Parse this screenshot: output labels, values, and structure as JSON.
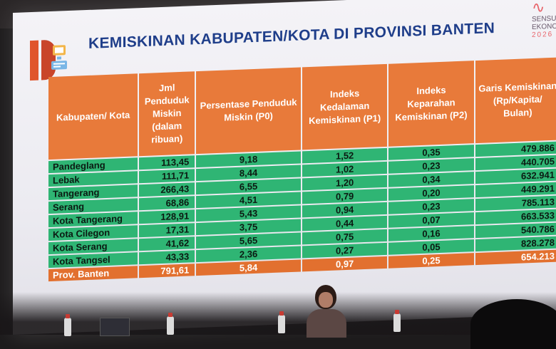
{
  "slide": {
    "title": "KEMISKINAN KABUPATEN/KOTA DI PROVINSI BANTEN",
    "brand": {
      "line1": "SENSUS",
      "line2": "EKONOMI",
      "year": "2026"
    }
  },
  "table": {
    "headers": [
      "Kabupaten/ Kota",
      "Jml Penduduk Miskin (dalam ribuan)",
      "Persentase Penduduk Miskin (P0)",
      "Indeks Kedalaman Kemiskinan (P1)",
      "Indeks Keparahan Kemiskinan (P2)",
      "Garis Kemiskinan (Rp/Kapita/ Bulan)"
    ],
    "rows": [
      [
        "Pandeglang",
        "113,45",
        "9,18",
        "1,52",
        "0,35",
        "479.886"
      ],
      [
        "Lebak",
        "111,71",
        "8,44",
        "1,02",
        "0,23",
        "440.705"
      ],
      [
        "Tangerang",
        "266,43",
        "6,55",
        "1,20",
        "0,34",
        "632.941"
      ],
      [
        "Serang",
        "68,86",
        "4,51",
        "0,79",
        "0,20",
        "449.291"
      ],
      [
        "Kota Tangerang",
        "128,91",
        "5,43",
        "0,94",
        "0,23",
        "785.113"
      ],
      [
        "Kota Cilegon",
        "17,31",
        "3,75",
        "0,44",
        "0,07",
        "663.533"
      ],
      [
        "Kota Serang",
        "41,62",
        "5,65",
        "0,75",
        "0,16",
        "540.786"
      ],
      [
        "Kota Tangsel",
        "43,33",
        "2,36",
        "0,27",
        "0,05",
        "828.278"
      ]
    ],
    "total": [
      "Prov. Banten",
      "791,61",
      "5,84",
      "0,97",
      "0,25",
      "654.213"
    ]
  },
  "colors": {
    "header": "#e87a3a",
    "row": "#2fb574",
    "total": "#e2702f",
    "title": "#1f3e8a"
  }
}
